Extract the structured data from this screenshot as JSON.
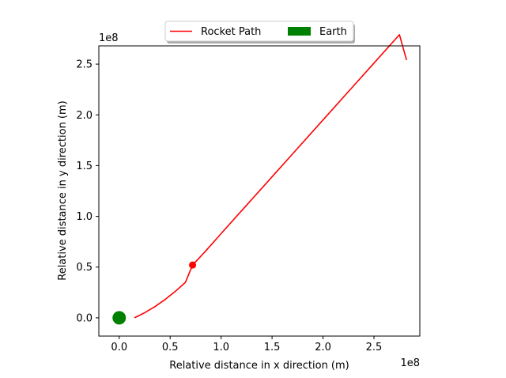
{
  "chart_data": {
    "type": "line",
    "xlabel": "Relative distance in x direction (m)",
    "ylabel": "Relative distance in y direction (m)",
    "x_offset_text": "1e8",
    "y_offset_text": "1e8",
    "xlim": [
      -0.2,
      2.95
    ],
    "ylim": [
      -0.18,
      2.68
    ],
    "xticks": [
      0.0,
      0.5,
      1.0,
      1.5,
      2.0,
      2.5
    ],
    "xtick_labels": [
      "0.0",
      "0.5",
      "1.0",
      "1.5",
      "2.0",
      "2.5"
    ],
    "yticks": [
      0.0,
      0.5,
      1.0,
      1.5,
      2.0,
      2.5
    ],
    "ytick_labels": [
      "0.0",
      "0.5",
      "1.0",
      "1.5",
      "2.0",
      "2.5"
    ],
    "grid": false,
    "legend": {
      "placement": "top-center",
      "entries": [
        {
          "label": "Rocket Path",
          "kind": "line",
          "color": "#ff0000"
        },
        {
          "label": "Earth",
          "kind": "patch",
          "color": "#008000"
        }
      ]
    },
    "series": [
      {
        "name": "Rocket Path",
        "color": "#ff0000",
        "x": [
          0.15,
          0.25,
          0.35,
          0.45,
          0.55,
          0.65,
          0.72,
          0.85,
          1.0,
          1.25,
          1.5,
          1.75,
          2.0,
          2.25,
          2.5,
          2.75,
          2.82
        ],
        "y": [
          0.0,
          0.05,
          0.11,
          0.18,
          0.26,
          0.35,
          0.52,
          0.66,
          0.83,
          1.11,
          1.39,
          1.67,
          1.95,
          2.23,
          2.51,
          2.79,
          2.54
        ]
      }
    ],
    "markers": [
      {
        "name": "Rocket position",
        "x": 0.72,
        "y": 0.52,
        "color": "#ff0000"
      },
      {
        "name": "Earth",
        "x": 0.0,
        "y": 0.0,
        "color": "#008000"
      }
    ]
  }
}
